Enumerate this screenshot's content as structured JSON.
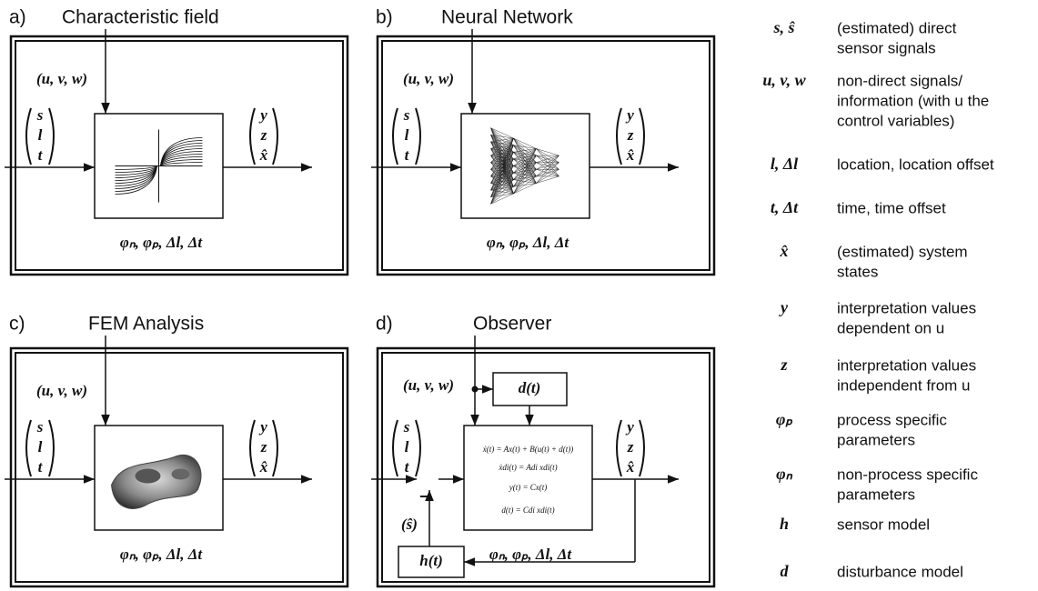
{
  "panels": [
    {
      "label": "a)",
      "title": "Characteristic field",
      "input": "(u, v, w)",
      "inputs_vector": [
        "s",
        "l",
        "t"
      ],
      "outputs_vector": [
        "y",
        "z",
        "x̂"
      ],
      "parameters": "φₙ, φₚ, Δl, Δt"
    },
    {
      "label": "b)",
      "title": "Neural Network",
      "input": "(u, v, w)",
      "inputs_vector": [
        "s",
        "l",
        "t"
      ],
      "outputs_vector": [
        "y",
        "z",
        "x̂"
      ],
      "parameters": "φₙ, φₚ, Δl, Δt"
    },
    {
      "label": "c)",
      "title": "FEM Analysis",
      "input": "(u, v, w)",
      "inputs_vector": [
        "s",
        "l",
        "t"
      ],
      "outputs_vector": [
        "y",
        "z",
        "x̂"
      ],
      "parameters": "φₙ, φₚ, Δl, Δt"
    },
    {
      "label": "d)",
      "title": "Observer",
      "input": "(u, v, w)",
      "inputs_vector": [
        "s",
        "l",
        "t"
      ],
      "outputs_vector": [
        "y",
        "z",
        "x̂"
      ],
      "parameters": "φₙ, φₚ, Δl, Δt"
    }
  ],
  "observer": {
    "disturbance": "d(t)",
    "sensor_model": "h(t)",
    "estimated_signal": "(ŝ)",
    "sign": "−",
    "equations": [
      "ẋ(t) = Ax(t) + B(u(t) + d(t))",
      "ẋdi(t) = Adi xdi(t)",
      "y(t) = Cx(t)",
      "d(t) = Cdi xdi(t)"
    ]
  },
  "legend": [
    {
      "symbol": "s, ŝ",
      "description": [
        "(estimated) direct",
        "sensor signals"
      ]
    },
    {
      "symbol": "u, v, w",
      "description": [
        "non-direct signals/",
        "information (with u the",
        "control variables)"
      ]
    },
    {
      "symbol": "l, Δl",
      "description": [
        "location, location offset"
      ]
    },
    {
      "symbol": "t, Δt",
      "description": [
        "time, time offset"
      ]
    },
    {
      "symbol": "x̂",
      "description": [
        "(estimated) system",
        "states"
      ]
    },
    {
      "symbol": "y",
      "description": [
        "interpretation values",
        "dependent on u"
      ]
    },
    {
      "symbol": "z",
      "description": [
        "interpretation values",
        "independent from u"
      ]
    },
    {
      "symbol": "φₚ",
      "description": [
        "process specific",
        "parameters"
      ]
    },
    {
      "symbol": "φₙ",
      "description": [
        "non-process specific",
        "parameters"
      ]
    },
    {
      "symbol": "h",
      "description": [
        "sensor model"
      ]
    },
    {
      "symbol": "d",
      "description": [
        "disturbance model"
      ]
    }
  ]
}
